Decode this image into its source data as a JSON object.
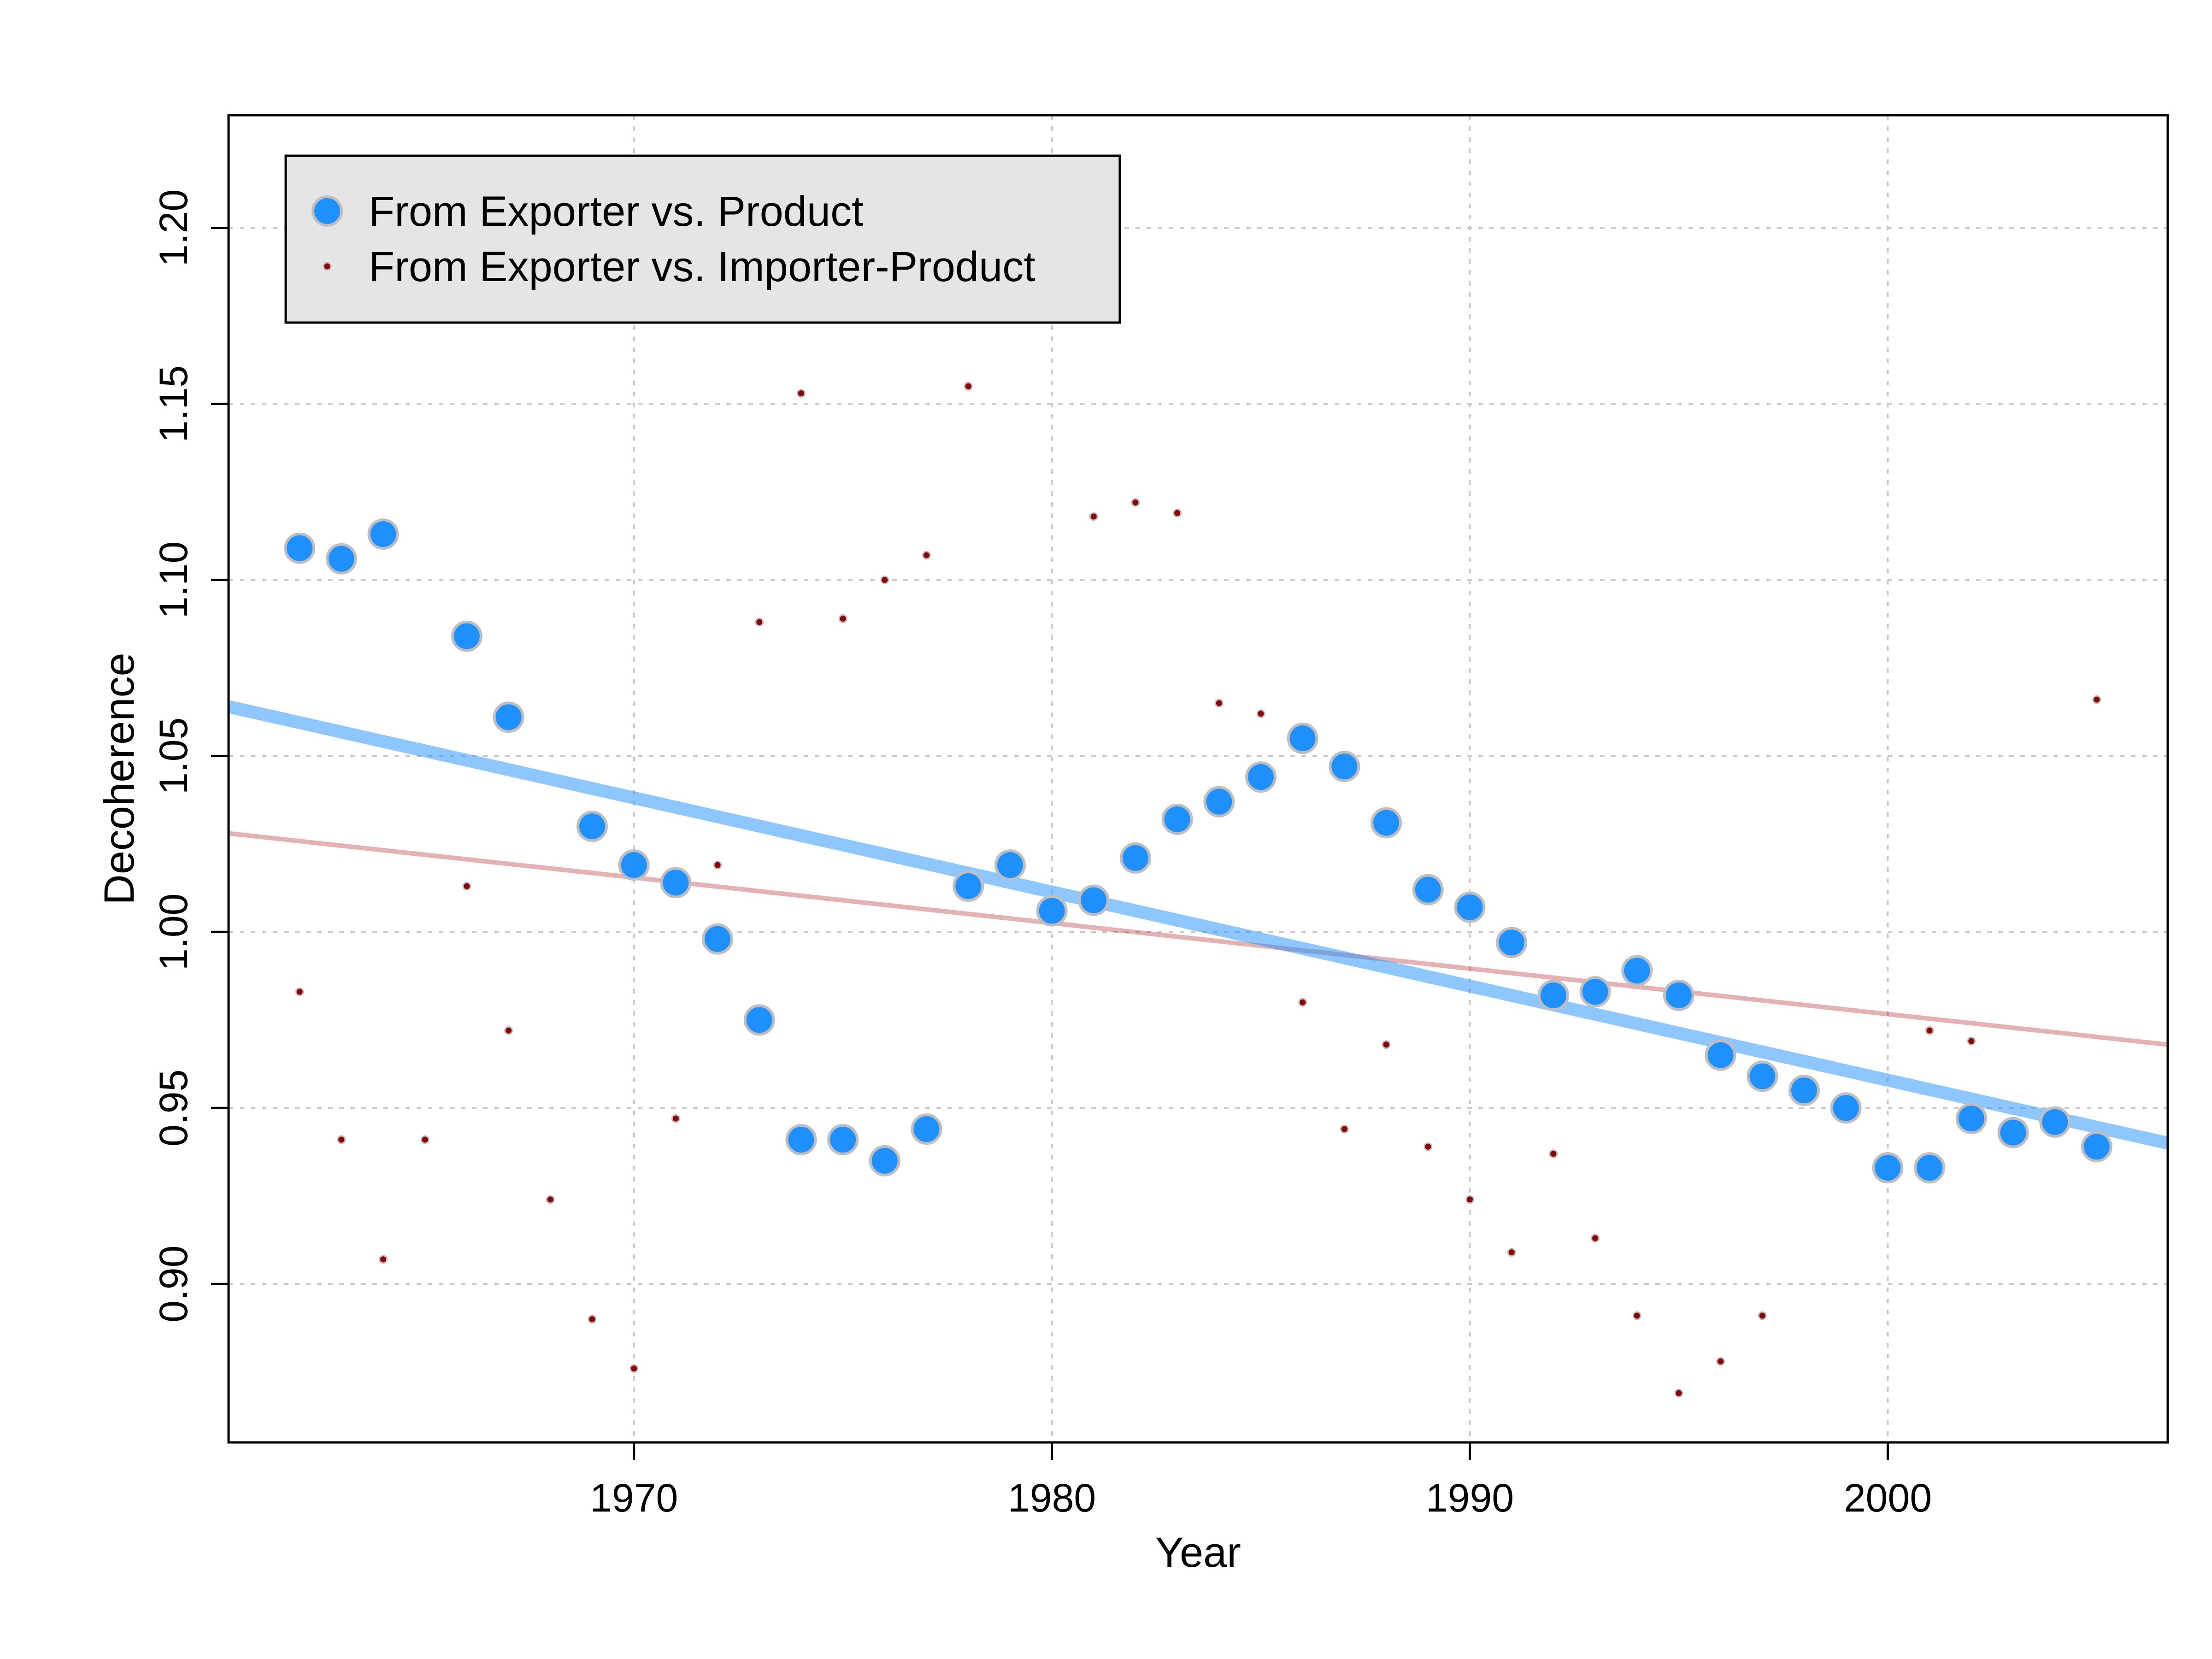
{
  "chart_data": {
    "type": "scatter",
    "title": "",
    "xlabel": "Year",
    "ylabel": "Decoherence",
    "xlim": [
      1960.3,
      2006.7
    ],
    "ylim": [
      0.855,
      1.232
    ],
    "x_ticks": [
      1970,
      1980,
      1990,
      2000
    ],
    "y_ticks": [
      0.9,
      0.95,
      1.0,
      1.05,
      1.1,
      1.15,
      1.2
    ],
    "x_tick_labels": [
      "1970",
      "1980",
      "1990",
      "2000"
    ],
    "y_tick_labels": [
      "0.90",
      "0.95",
      "1.00",
      "1.05",
      "1.10",
      "1.15",
      "1.20"
    ],
    "grid": true,
    "legend_position": "top-left",
    "series": [
      {
        "name": "From Exporter vs. Product",
        "marker": "large-circle",
        "color": "#1E90FF",
        "edge_color": "#BEBEBE",
        "points": [
          [
            1962,
            1.109
          ],
          [
            1963,
            1.106
          ],
          [
            1964,
            1.113
          ],
          [
            1966,
            1.084
          ],
          [
            1967,
            1.061
          ],
          [
            1969,
            1.03
          ],
          [
            1970,
            1.019
          ],
          [
            1971,
            1.014
          ],
          [
            1972,
            0.998
          ],
          [
            1973,
            0.975
          ],
          [
            1974,
            0.941
          ],
          [
            1975,
            0.941
          ],
          [
            1976,
            0.935
          ],
          [
            1977,
            0.944
          ],
          [
            1978,
            1.013
          ],
          [
            1979,
            1.019
          ],
          [
            1980,
            1.006
          ],
          [
            1981,
            1.009
          ],
          [
            1982,
            1.021
          ],
          [
            1983,
            1.032
          ],
          [
            1984,
            1.037
          ],
          [
            1985,
            1.044
          ],
          [
            1986,
            1.055
          ],
          [
            1987,
            1.047
          ],
          [
            1988,
            1.031
          ],
          [
            1989,
            1.012
          ],
          [
            1990,
            1.007
          ],
          [
            1991,
            0.997
          ],
          [
            1992,
            0.982
          ],
          [
            1993,
            0.983
          ],
          [
            1994,
            0.989
          ],
          [
            1995,
            0.982
          ],
          [
            1996,
            0.965
          ],
          [
            1997,
            0.959
          ],
          [
            1998,
            0.955
          ],
          [
            1999,
            0.95
          ],
          [
            2000,
            0.933
          ],
          [
            2001,
            0.933
          ],
          [
            2002,
            0.947
          ],
          [
            2003,
            0.943
          ],
          [
            2004,
            0.946
          ],
          [
            2005,
            0.939
          ]
        ],
        "trend": {
          "color": "#1E90FF",
          "opacity": 0.5,
          "start": [
            1960.3,
            1.064
          ],
          "end": [
            2006.7,
            0.94
          ]
        }
      },
      {
        "name": "From Exporter vs. Importer-Product",
        "marker": "small-dot",
        "color": "#8B0000",
        "edge_color": "#BEBEBE",
        "points": [
          [
            1962,
            0.983
          ],
          [
            1963,
            0.941
          ],
          [
            1964,
            0.907
          ],
          [
            1965,
            0.941
          ],
          [
            1966,
            1.013
          ],
          [
            1967,
            0.972
          ],
          [
            1968,
            0.924
          ],
          [
            1969,
            0.89
          ],
          [
            1970,
            0.876
          ],
          [
            1971,
            0.947
          ],
          [
            1972,
            1.019
          ],
          [
            1973,
            1.088
          ],
          [
            1974,
            1.153
          ],
          [
            1975,
            1.089
          ],
          [
            1976,
            1.1
          ],
          [
            1977,
            1.107
          ],
          [
            1978,
            1.155
          ],
          [
            1981,
            1.118
          ],
          [
            1982,
            1.122
          ],
          [
            1983,
            1.119
          ],
          [
            1984,
            1.065
          ],
          [
            1985,
            1.062
          ],
          [
            1986,
            0.98
          ],
          [
            1987,
            0.944
          ],
          [
            1988,
            0.968
          ],
          [
            1989,
            0.939
          ],
          [
            1990,
            0.924
          ],
          [
            1991,
            0.909
          ],
          [
            1992,
            0.937
          ],
          [
            1993,
            0.913
          ],
          [
            1994,
            0.891
          ],
          [
            1995,
            0.869
          ],
          [
            1996,
            0.878
          ],
          [
            1997,
            0.891
          ],
          [
            2001,
            0.972
          ],
          [
            2002,
            0.969
          ],
          [
            2005,
            1.066
          ]
        ],
        "trend": {
          "color": "#B22222",
          "opacity": 0.35,
          "start": [
            1960.3,
            1.028
          ],
          "end": [
            2006.7,
            0.968
          ]
        }
      }
    ],
    "legend_background": "#E5E5E5"
  }
}
